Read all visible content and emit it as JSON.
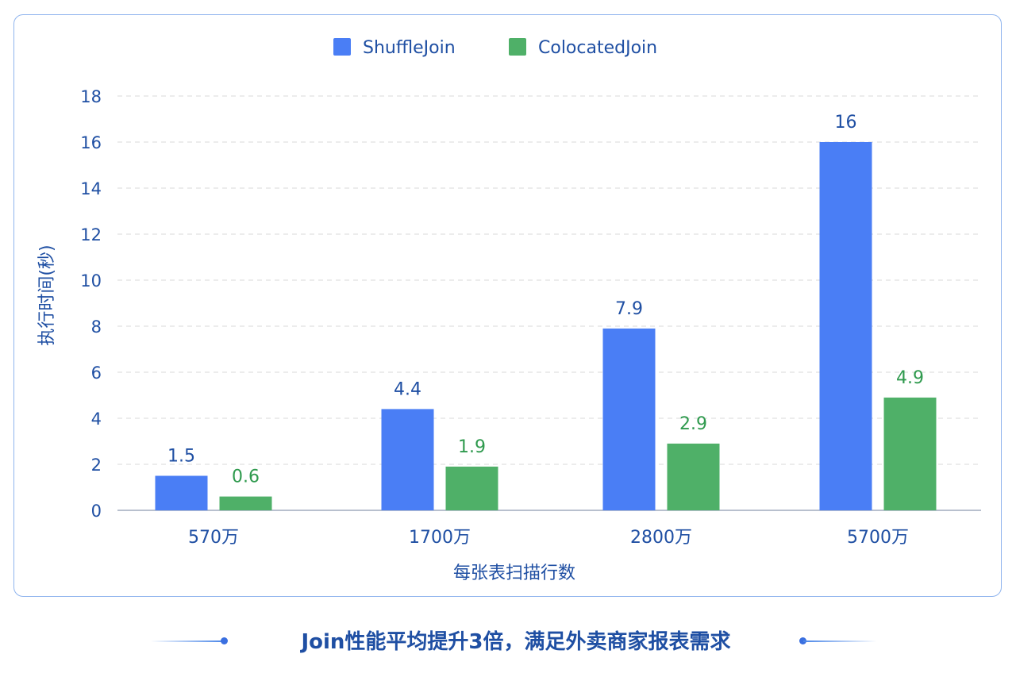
{
  "chart_data": {
    "type": "bar",
    "categories": [
      "570万",
      "1700万",
      "2800万",
      "5700万"
    ],
    "series": [
      {
        "name": "ShuffleJoin",
        "values": [
          1.5,
          4.4,
          7.9,
          16
        ],
        "color": "#4a7ef5"
      },
      {
        "name": "ColocatedJoin",
        "values": [
          0.6,
          1.9,
          2.9,
          4.9
        ],
        "color": "#4fb068"
      }
    ],
    "xlabel": "每张表扫描行数",
    "ylabel": "执行时间(秒)",
    "ylim": [
      0,
      18
    ],
    "yticks": [
      0,
      2,
      4,
      6,
      8,
      10,
      12,
      14,
      16,
      18
    ],
    "grid": true,
    "legend": "top-center",
    "label_colors": {
      "ShuffleJoin": "#1f4fa3",
      "ColocatedJoin": "#2f9a4e"
    }
  },
  "caption": {
    "text": "Join性能平均提升3倍，满足外卖商家报表需求"
  },
  "colors": {
    "axis_text": "#1f4fa3",
    "card_border": "#8fb4ee",
    "grid": "#d9d9d9"
  }
}
